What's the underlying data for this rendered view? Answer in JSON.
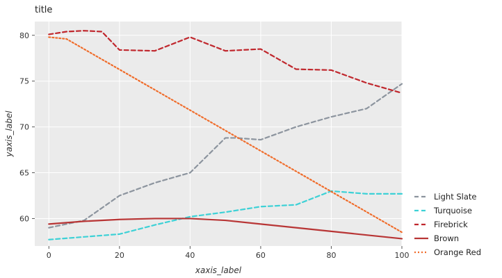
{
  "chart_data": {
    "type": "line",
    "title": "title",
    "xlabel": "xaxis_label",
    "ylabel": "yaxis_label",
    "xlim": [
      -4,
      100
    ],
    "ylim": [
      57,
      81.5
    ],
    "xticks": [
      0,
      20,
      40,
      60,
      80,
      100
    ],
    "yticks": [
      60,
      65,
      70,
      75,
      80
    ],
    "legend_position": "right",
    "series": [
      {
        "name": "Light Slate",
        "color": "#8c949e",
        "dash": "6,4",
        "x": [
          0,
          10,
          20,
          30,
          40,
          50,
          53,
          60,
          70,
          80,
          90,
          100
        ],
        "y": [
          59.0,
          59.8,
          62.5,
          63.9,
          65.0,
          68.8,
          68.8,
          68.6,
          70.0,
          71.1,
          72.0,
          74.7
        ]
      },
      {
        "name": "Turquoise",
        "color": "#3dd1d6",
        "dash": "6,4",
        "x": [
          0,
          10,
          20,
          30,
          40,
          50,
          60,
          70,
          80,
          90,
          100
        ],
        "y": [
          57.7,
          58.0,
          58.3,
          59.3,
          60.2,
          60.7,
          61.3,
          61.5,
          63.0,
          62.7,
          62.7
        ]
      },
      {
        "name": "Firebrick",
        "color": "#c0272d",
        "dash": "6,4",
        "x": [
          0,
          5,
          10,
          15,
          20,
          30,
          40,
          50,
          60,
          70,
          80,
          90,
          100
        ],
        "y": [
          80.1,
          80.4,
          80.5,
          80.4,
          78.4,
          78.3,
          79.8,
          78.3,
          78.5,
          76.3,
          76.2,
          74.8,
          73.7
        ]
      },
      {
        "name": "Brown",
        "color": "#b83535",
        "dash": "",
        "x": [
          0,
          10,
          20,
          30,
          40,
          50,
          60,
          70,
          80,
          90,
          100
        ],
        "y": [
          59.4,
          59.7,
          59.9,
          60.0,
          60.0,
          59.8,
          59.4,
          59.0,
          58.6,
          58.2,
          57.8
        ]
      },
      {
        "name": "Orange Red",
        "color": "#f06c2a",
        "dash": "2,3",
        "x": [
          0,
          5,
          100
        ],
        "y": [
          79.8,
          79.6,
          58.5
        ]
      }
    ]
  }
}
